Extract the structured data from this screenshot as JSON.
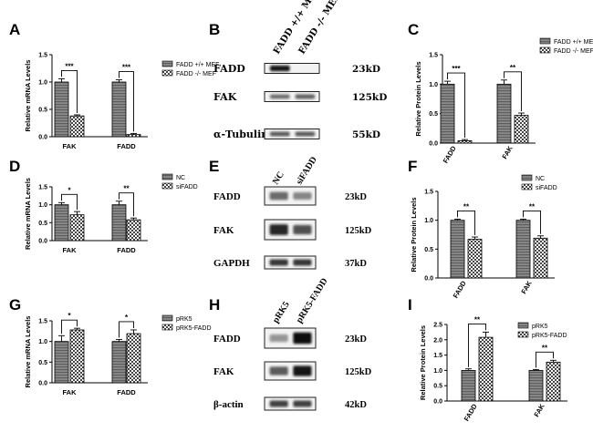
{
  "colors": {
    "bar_dark": "#707070",
    "bar_light": "#ffffff",
    "text": "#000000",
    "band": "#333333"
  },
  "panels": [
    {
      "letter": "A",
      "kind": "chart"
    },
    {
      "letter": "B",
      "kind": "blot"
    },
    {
      "letter": "C",
      "kind": "chart"
    },
    {
      "letter": "D",
      "kind": "chart"
    },
    {
      "letter": "E",
      "kind": "blot"
    },
    {
      "letter": "F",
      "kind": "chart"
    },
    {
      "letter": "G",
      "kind": "chart"
    },
    {
      "letter": "H",
      "kind": "blot"
    },
    {
      "letter": "I",
      "kind": "chart"
    }
  ],
  "chart_data": [
    {
      "panel": "A",
      "type": "bar",
      "ylabel": "Relative mRNA Levels",
      "ylim": [
        0,
        1.5
      ],
      "yticks": [
        "0.0",
        "0.5",
        "1.0",
        "1.5"
      ],
      "categories": [
        "FAK",
        "FADD"
      ],
      "series": [
        {
          "name": "FADD +/+ MEF",
          "style": "dark",
          "values": [
            1.0,
            1.0
          ],
          "errors": [
            0.06,
            0.04
          ]
        },
        {
          "name": "FADD -/- MEF",
          "style": "light",
          "values": [
            0.38,
            0.04
          ],
          "errors": [
            0.02,
            0.02
          ]
        }
      ],
      "significance": [
        "***",
        "***"
      ],
      "legend": "right"
    },
    {
      "panel": "C",
      "type": "bar",
      "ylabel": "Relative Protein Levels",
      "ylim": [
        0,
        1.5
      ],
      "yticks": [
        "0.0",
        "0.5",
        "1.0",
        "1.5"
      ],
      "categories": [
        "FADD",
        "FAK"
      ],
      "series": [
        {
          "name": "FADD +/+ MEF",
          "style": "dark",
          "values": [
            1.0,
            1.0
          ],
          "errors": [
            0.05,
            0.07
          ]
        },
        {
          "name": "FADD -/- MEF",
          "style": "light",
          "values": [
            0.04,
            0.47
          ],
          "errors": [
            0.02,
            0.04
          ]
        }
      ],
      "significance": [
        "***",
        "**"
      ],
      "legend": "right"
    },
    {
      "panel": "D",
      "type": "bar",
      "ylabel": "Relative mRNA Levels",
      "ylim": [
        0,
        1.5
      ],
      "yticks": [
        "0.0",
        "0.5",
        "1.0",
        "1.5"
      ],
      "categories": [
        "FAK",
        "FADD"
      ],
      "series": [
        {
          "name": "NC",
          "style": "dark",
          "values": [
            1.0,
            1.0
          ],
          "errors": [
            0.06,
            0.1
          ]
        },
        {
          "name": "siFADD",
          "style": "light",
          "values": [
            0.72,
            0.58
          ],
          "errors": [
            0.09,
            0.05
          ]
        }
      ],
      "significance": [
        "*",
        "**"
      ],
      "legend": "right"
    },
    {
      "panel": "F",
      "type": "bar",
      "ylabel": "Relative Protein Levels",
      "ylim": [
        0,
        1.5
      ],
      "yticks": [
        "0.0",
        "0.5",
        "1.0",
        "1.5"
      ],
      "categories": [
        "FADD",
        "FAK"
      ],
      "series": [
        {
          "name": "NC",
          "style": "dark",
          "values": [
            1.0,
            1.0
          ],
          "errors": [
            0.02,
            0.02
          ]
        },
        {
          "name": "siFADD",
          "style": "light",
          "values": [
            0.67,
            0.69
          ],
          "errors": [
            0.04,
            0.04
          ]
        }
      ],
      "significance": [
        "**",
        "**"
      ],
      "legend": "right"
    },
    {
      "panel": "G",
      "type": "bar",
      "ylabel": "Relative mRNA Levels",
      "ylim": [
        0,
        1.5
      ],
      "yticks": [
        "0.0",
        "0.5",
        "1.0",
        "1.5"
      ],
      "categories": [
        "FAK",
        "FADD"
      ],
      "series": [
        {
          "name": "pRK5",
          "style": "dark",
          "values": [
            1.0,
            1.0
          ],
          "errors": [
            0.14,
            0.05
          ]
        },
        {
          "name": "pRK5-FADD",
          "style": "light",
          "values": [
            1.28,
            1.19
          ],
          "errors": [
            0.04,
            0.09
          ]
        }
      ],
      "significance": [
        "*",
        "*"
      ],
      "legend": "right"
    },
    {
      "panel": "I",
      "type": "bar",
      "ylabel": "Relative Protein Levels",
      "ylim": [
        0,
        2.5
      ],
      "yticks": [
        "0.0",
        "0.5",
        "1.0",
        "1.5",
        "2.0",
        "2.5"
      ],
      "categories": [
        "FADD",
        "FAK"
      ],
      "series": [
        {
          "name": "pRK5",
          "style": "dark",
          "values": [
            1.0,
            1.0
          ],
          "errors": [
            0.05,
            0.03
          ]
        },
        {
          "name": "pRK5-FADD",
          "style": "light",
          "values": [
            2.08,
            1.27
          ],
          "errors": [
            0.17,
            0.06
          ]
        }
      ],
      "significance": [
        "**",
        "**"
      ],
      "legend": "right"
    }
  ],
  "blots": [
    {
      "panel": "B",
      "font": "gothic",
      "lanes": [
        "FADD +/+ MEF",
        "FADD -/- MEF"
      ],
      "rows": [
        {
          "protein": "FADD",
          "size": "23kD",
          "intensity": [
            0.95,
            0.05
          ]
        },
        {
          "protein": "FAK",
          "size": "125kD",
          "intensity": [
            0.45,
            0.5
          ]
        },
        {
          "protein": "α-Tubulin",
          "size": "55kD",
          "intensity": [
            0.55,
            0.55
          ]
        }
      ]
    },
    {
      "panel": "E",
      "font": "serif",
      "lanes": [
        "NC",
        "siFADD"
      ],
      "rows": [
        {
          "protein": "FADD",
          "size": "23kD",
          "intensity": [
            0.45,
            0.3
          ]
        },
        {
          "protein": "FAK",
          "size": "125kD",
          "intensity": [
            0.85,
            0.6
          ]
        },
        {
          "protein": "GAPDH",
          "size": "37kD",
          "intensity": [
            0.75,
            0.75
          ]
        }
      ]
    },
    {
      "panel": "H",
      "font": "serif",
      "lanes": [
        "pRK5",
        "pRK5-FADD"
      ],
      "rows": [
        {
          "protein": "FADD",
          "size": "23kD",
          "intensity": [
            0.2,
            1.0
          ]
        },
        {
          "protein": "FAK",
          "size": "125kD",
          "intensity": [
            0.55,
            0.95
          ]
        },
        {
          "protein": "β-actin",
          "size": "42kD",
          "intensity": [
            0.7,
            0.7
          ]
        }
      ]
    }
  ]
}
